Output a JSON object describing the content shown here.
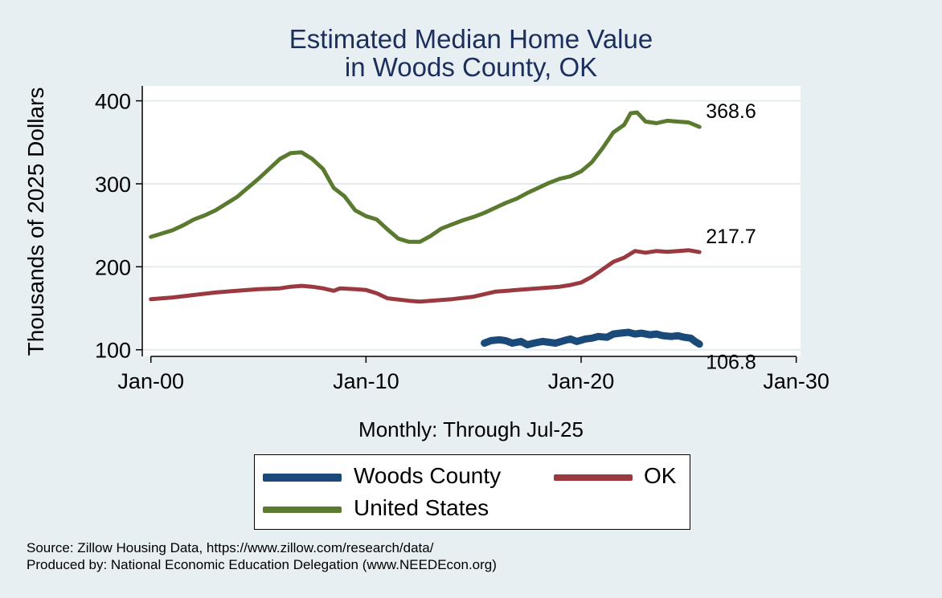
{
  "chart_data": {
    "type": "line",
    "title_line1": "Estimated Median Home Value",
    "title_line2": "in Woods County, OK",
    "ylabel": "Thousands of 2025 Dollars",
    "xlabel": "Monthly: Through Jul-25",
    "x_ticks": [
      "Jan-00",
      "Jan-10",
      "Jan-20",
      "Jan-30"
    ],
    "x_tick_years": [
      2000,
      2010,
      2020,
      2030
    ],
    "xlim": [
      1999.6,
      2030.2
    ],
    "y_ticks": [
      100,
      200,
      300,
      400
    ],
    "ylim": [
      92,
      418
    ],
    "grid": true,
    "legend_position": "bottom",
    "series": [
      {
        "name": "Woods County",
        "color": "#1a4a7a",
        "end_label": "106.8",
        "points": [
          [
            2015.5,
            108
          ],
          [
            2015.8,
            111
          ],
          [
            2016.2,
            112
          ],
          [
            2016.5,
            111
          ],
          [
            2016.8,
            108
          ],
          [
            2017.2,
            110
          ],
          [
            2017.5,
            106
          ],
          [
            2017.8,
            108
          ],
          [
            2018.2,
            110
          ],
          [
            2018.5,
            109
          ],
          [
            2018.8,
            108
          ],
          [
            2019.2,
            111
          ],
          [
            2019.5,
            113
          ],
          [
            2019.8,
            110
          ],
          [
            2020.2,
            113
          ],
          [
            2020.5,
            114
          ],
          [
            2020.8,
            116
          ],
          [
            2021.2,
            115
          ],
          [
            2021.5,
            119
          ],
          [
            2021.8,
            120
          ],
          [
            2022.2,
            121
          ],
          [
            2022.5,
            119
          ],
          [
            2022.8,
            120
          ],
          [
            2023.2,
            118
          ],
          [
            2023.5,
            119
          ],
          [
            2023.8,
            117
          ],
          [
            2024.2,
            116
          ],
          [
            2024.5,
            117
          ],
          [
            2024.8,
            115
          ],
          [
            2025.1,
            114
          ],
          [
            2025.3,
            110
          ],
          [
            2025.5,
            106.8
          ]
        ]
      },
      {
        "name": "OK",
        "color": "#9a3a40",
        "end_label": "217.7",
        "points": [
          [
            2000.0,
            161
          ],
          [
            2001.0,
            163
          ],
          [
            2002.0,
            166
          ],
          [
            2003.0,
            169
          ],
          [
            2004.0,
            171
          ],
          [
            2005.0,
            173
          ],
          [
            2006.0,
            174
          ],
          [
            2006.5,
            176
          ],
          [
            2007.0,
            177
          ],
          [
            2007.5,
            176
          ],
          [
            2008.0,
            174
          ],
          [
            2008.5,
            171
          ],
          [
            2008.8,
            174
          ],
          [
            2009.5,
            173
          ],
          [
            2010.0,
            172
          ],
          [
            2010.5,
            168
          ],
          [
            2011.0,
            162
          ],
          [
            2012.0,
            159
          ],
          [
            2012.5,
            158
          ],
          [
            2013.0,
            159
          ],
          [
            2014.0,
            161
          ],
          [
            2015.0,
            164
          ],
          [
            2016.0,
            170
          ],
          [
            2017.0,
            172
          ],
          [
            2018.0,
            174
          ],
          [
            2019.0,
            176
          ],
          [
            2019.5,
            178
          ],
          [
            2020.0,
            181
          ],
          [
            2020.5,
            188
          ],
          [
            2021.0,
            197
          ],
          [
            2021.5,
            206
          ],
          [
            2022.0,
            211
          ],
          [
            2022.5,
            219
          ],
          [
            2023.0,
            217
          ],
          [
            2023.5,
            219
          ],
          [
            2024.0,
            218
          ],
          [
            2025.0,
            220
          ],
          [
            2025.5,
            217.7
          ]
        ]
      },
      {
        "name": "United States",
        "color": "#5a7a30",
        "end_label": "368.6",
        "points": [
          [
            2000.0,
            236
          ],
          [
            2000.5,
            240
          ],
          [
            2001.0,
            244
          ],
          [
            2001.5,
            250
          ],
          [
            2002.0,
            257
          ],
          [
            2002.5,
            262
          ],
          [
            2003.0,
            268
          ],
          [
            2003.5,
            276
          ],
          [
            2004.0,
            284
          ],
          [
            2004.5,
            295
          ],
          [
            2005.0,
            306
          ],
          [
            2005.5,
            318
          ],
          [
            2006.0,
            330
          ],
          [
            2006.5,
            337
          ],
          [
            2007.0,
            338
          ],
          [
            2007.5,
            330
          ],
          [
            2008.0,
            318
          ],
          [
            2008.5,
            295
          ],
          [
            2009.0,
            285
          ],
          [
            2009.5,
            268
          ],
          [
            2010.0,
            261
          ],
          [
            2010.5,
            257
          ],
          [
            2011.0,
            245
          ],
          [
            2011.5,
            234
          ],
          [
            2012.0,
            230
          ],
          [
            2012.5,
            230
          ],
          [
            2013.0,
            237
          ],
          [
            2013.5,
            246
          ],
          [
            2014.0,
            251
          ],
          [
            2014.5,
            256
          ],
          [
            2015.0,
            260
          ],
          [
            2015.5,
            265
          ],
          [
            2016.0,
            271
          ],
          [
            2016.5,
            277
          ],
          [
            2017.0,
            282
          ],
          [
            2017.5,
            289
          ],
          [
            2018.0,
            295
          ],
          [
            2018.5,
            301
          ],
          [
            2019.0,
            306
          ],
          [
            2019.5,
            309
          ],
          [
            2020.0,
            315
          ],
          [
            2020.5,
            326
          ],
          [
            2021.0,
            343
          ],
          [
            2021.5,
            362
          ],
          [
            2022.0,
            371
          ],
          [
            2022.3,
            385
          ],
          [
            2022.6,
            386
          ],
          [
            2023.0,
            375
          ],
          [
            2023.5,
            373
          ],
          [
            2024.0,
            376
          ],
          [
            2024.5,
            375
          ],
          [
            2025.0,
            374
          ],
          [
            2025.5,
            368.6
          ]
        ]
      }
    ]
  },
  "source_line1": "Source: Zillow Housing Data, https://www.zillow.com/research/data/",
  "source_line2": "Produced by: National Economic Education Delegation (www.NEEDEcon.org)"
}
